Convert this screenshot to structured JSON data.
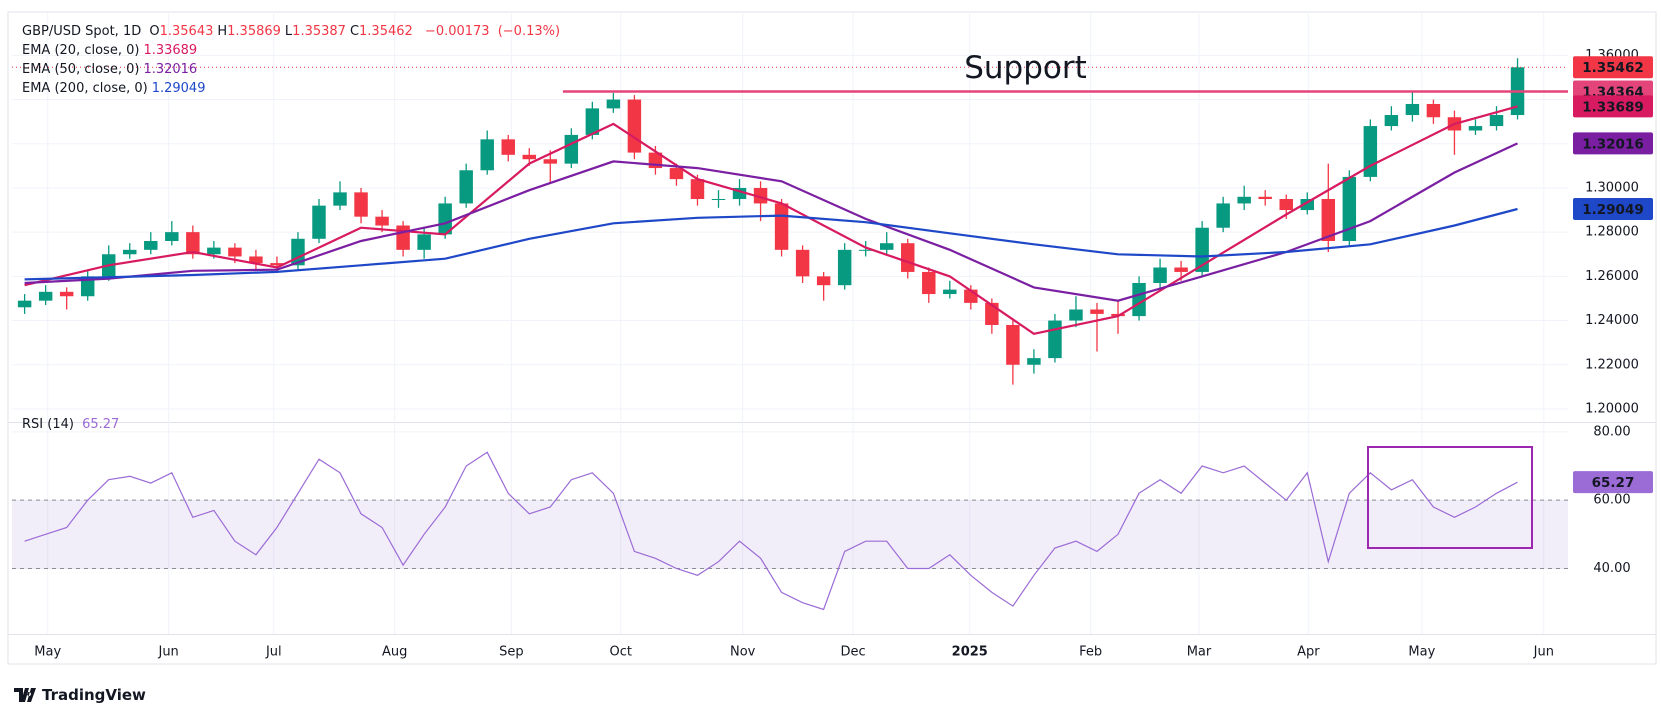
{
  "chart_data": {
    "type": "candlestick",
    "title": "GBP/USD Spot, 1D",
    "quote": [
      {
        "label": "O",
        "value": 1.35643
      },
      {
        "label": "H",
        "value": 1.35869
      },
      {
        "label": "L",
        "value": 1.35387
      },
      {
        "label": "C",
        "value": 1.35462
      }
    ],
    "change": {
      "value": -0.00173,
      "label": "−0.00173"
    },
    "change_pct": {
      "value": -0.13,
      "label": "(−0.13%)"
    },
    "up_color": "#089981",
    "down_color": "#f23645",
    "open": [
      1.246,
      1.249,
      1.253,
      1.251,
      1.26,
      1.27,
      1.272,
      1.276,
      1.28,
      1.27,
      1.273,
      1.269,
      1.266,
      1.265,
      1.277,
      1.292,
      1.298,
      1.287,
      1.283,
      1.272,
      1.279,
      1.293,
      1.308,
      1.322,
      1.315,
      1.313,
      1.311,
      1.324,
      1.336,
      1.34,
      1.316,
      1.309,
      1.304,
      1.295,
      1.295,
      1.3,
      1.293,
      1.272,
      1.26,
      1.256,
      1.272,
      1.272,
      1.275,
      1.262,
      1.252,
      1.254,
      1.248,
      1.238,
      1.22,
      1.223,
      1.24,
      1.245,
      1.243,
      1.242,
      1.257,
      1.264,
      1.262,
      1.282,
      1.293,
      1.296,
      1.295,
      1.29,
      1.295,
      1.276,
      1.305,
      1.328,
      1.333,
      1.338,
      1.332,
      1.326,
      1.328,
      1.333
    ],
    "high": [
      1.252,
      1.256,
      1.255,
      1.263,
      1.274,
      1.275,
      1.28,
      1.285,
      1.283,
      1.276,
      1.275,
      1.272,
      1.269,
      1.28,
      1.295,
      1.303,
      1.3,
      1.29,
      1.285,
      1.282,
      1.296,
      1.311,
      1.326,
      1.324,
      1.318,
      1.317,
      1.327,
      1.339,
      1.343,
      1.342,
      1.319,
      1.311,
      1.306,
      1.299,
      1.304,
      1.303,
      1.295,
      1.274,
      1.262,
      1.275,
      1.276,
      1.28,
      1.277,
      1.264,
      1.258,
      1.256,
      1.25,
      1.24,
      1.227,
      1.243,
      1.251,
      1.248,
      1.249,
      1.26,
      1.268,
      1.267,
      1.285,
      1.296,
      1.301,
      1.299,
      1.297,
      1.298,
      1.311,
      1.308,
      1.331,
      1.337,
      1.3436,
      1.34,
      1.335,
      1.331,
      1.337,
      1.3587
    ],
    "low": [
      1.243,
      1.247,
      1.245,
      1.249,
      1.258,
      1.268,
      1.27,
      1.274,
      1.268,
      1.268,
      1.266,
      1.263,
      1.262,
      1.263,
      1.275,
      1.29,
      1.284,
      1.28,
      1.269,
      1.268,
      1.277,
      1.291,
      1.306,
      1.312,
      1.31,
      1.302,
      1.309,
      1.322,
      1.334,
      1.313,
      1.306,
      1.301,
      1.292,
      1.291,
      1.292,
      1.285,
      1.269,
      1.257,
      1.249,
      1.254,
      1.269,
      1.27,
      1.259,
      1.248,
      1.25,
      1.245,
      1.234,
      1.211,
      1.216,
      1.221,
      1.237,
      1.226,
      1.234,
      1.24,
      1.255,
      1.258,
      1.26,
      1.28,
      1.29,
      1.292,
      1.286,
      1.288,
      1.271,
      1.274,
      1.303,
      1.326,
      1.33,
      1.329,
      1.315,
      1.324,
      1.326,
      1.331
    ],
    "close": [
      1.249,
      1.253,
      1.251,
      1.26,
      1.27,
      1.272,
      1.276,
      1.28,
      1.27,
      1.273,
      1.269,
      1.266,
      1.265,
      1.277,
      1.292,
      1.298,
      1.287,
      1.283,
      1.272,
      1.279,
      1.293,
      1.308,
      1.322,
      1.315,
      1.313,
      1.311,
      1.324,
      1.336,
      1.34,
      1.316,
      1.309,
      1.304,
      1.295,
      1.295,
      1.3,
      1.293,
      1.272,
      1.26,
      1.256,
      1.272,
      1.272,
      1.275,
      1.262,
      1.252,
      1.254,
      1.248,
      1.238,
      1.22,
      1.223,
      1.24,
      1.245,
      1.243,
      1.242,
      1.257,
      1.264,
      1.262,
      1.282,
      1.293,
      1.296,
      1.295,
      1.29,
      1.295,
      1.276,
      1.305,
      1.328,
      1.333,
      1.338,
      1.332,
      1.326,
      1.328,
      1.333,
      1.3546
    ],
    "series": [
      {
        "name": "EMA (20, close, 0)",
        "color": "#d81b60",
        "x": [
          0,
          4,
          8,
          12,
          16,
          20,
          24,
          28,
          32,
          36,
          40,
          44,
          48,
          52,
          56,
          60,
          64,
          68,
          71
        ],
        "values": [
          1.256,
          1.265,
          1.271,
          1.264,
          1.282,
          1.279,
          1.311,
          1.329,
          1.304,
          1.293,
          1.273,
          1.26,
          1.234,
          1.242,
          1.265,
          1.288,
          1.31,
          1.329,
          1.33689
        ]
      },
      {
        "name": "EMA (50, close, 0)",
        "color": "#7b1fa2",
        "x": [
          0,
          4,
          8,
          12,
          16,
          20,
          24,
          28,
          32,
          36,
          40,
          44,
          48,
          52,
          56,
          60,
          64,
          68,
          71
        ],
        "values": [
          1.257,
          1.259,
          1.2625,
          1.263,
          1.276,
          1.284,
          1.299,
          1.312,
          1.309,
          1.303,
          1.286,
          1.272,
          1.255,
          1.249,
          1.26,
          1.271,
          1.285,
          1.307,
          1.32016
        ]
      },
      {
        "name": "EMA (200, close, 0)",
        "color": "#1e48c8",
        "x": [
          0,
          4,
          8,
          12,
          16,
          20,
          24,
          28,
          32,
          36,
          40,
          44,
          48,
          52,
          56,
          60,
          64,
          68,
          71
        ],
        "values": [
          1.2586,
          1.2596,
          1.2606,
          1.262,
          1.265,
          1.268,
          1.277,
          1.284,
          1.2865,
          1.2875,
          1.2845,
          1.2795,
          1.2745,
          1.27,
          1.269,
          1.271,
          1.2745,
          1.283,
          1.29049
        ]
      }
    ],
    "support": {
      "label": "Support",
      "value": 1.34364,
      "start": 25.6,
      "color": "#e3447a"
    },
    "ylim": [
      1.195,
      1.376
    ],
    "yticks": [
      {
        "value": 1.2,
        "label": "1.20000"
      },
      {
        "value": 1.22,
        "label": "1.22000"
      },
      {
        "value": 1.24,
        "label": "1.24000"
      },
      {
        "value": 1.26,
        "label": "1.26000"
      },
      {
        "value": 1.28,
        "label": "1.28000"
      },
      {
        "value": 1.3,
        "label": "1.30000"
      },
      {
        "value": 1.32,
        "label": "1.32000"
      },
      {
        "value": 1.34,
        "label": "1.34000"
      },
      {
        "value": 1.36,
        "label": "1.36000"
      }
    ],
    "xlim": [
      -0.6,
      73.4
    ],
    "xticks": [
      {
        "value": 1.1,
        "label": "May"
      },
      {
        "value": 6.85,
        "label": "Jun"
      },
      {
        "value": 11.85,
        "label": "Jul"
      },
      {
        "value": 17.6,
        "label": "Aug"
      },
      {
        "value": 23.15,
        "label": "Sep"
      },
      {
        "value": 28.35,
        "label": "Oct"
      },
      {
        "value": 34.15,
        "label": "Nov"
      },
      {
        "value": 39.4,
        "label": "Dec"
      },
      {
        "value": 44.95,
        "label": "2025"
      },
      {
        "value": 50.7,
        "label": "Feb"
      },
      {
        "value": 55.85,
        "label": "Mar"
      },
      {
        "value": 61.05,
        "label": "Apr"
      },
      {
        "value": 66.45,
        "label": "May"
      },
      {
        "value": 72.25,
        "label": "Jun"
      }
    ],
    "grid": true,
    "rsi": {
      "name": "RSI (14)",
      "color": "#9b6bd6",
      "values": [
        48,
        50,
        52,
        60,
        66,
        67,
        65,
        68,
        55,
        57,
        48,
        44,
        52,
        62,
        72,
        68,
        56,
        52,
        41,
        50,
        58,
        70,
        74,
        62,
        56,
        58,
        66,
        68,
        62,
        45,
        43,
        40,
        38,
        42,
        48,
        43,
        33,
        30,
        28,
        45,
        48,
        48,
        40,
        40,
        44,
        38,
        33,
        29,
        38,
        46,
        48,
        45,
        50,
        62,
        66,
        62,
        70,
        68,
        70,
        65,
        60,
        68,
        42,
        62,
        68,
        63,
        66,
        58,
        55,
        58,
        62,
        65.27
      ],
      "ylim": [
        22,
        82
      ],
      "yticks": [
        {
          "value": 80,
          "label": "80.00"
        },
        {
          "value": 60,
          "label": "60.00"
        },
        {
          "value": 40,
          "label": "40.00"
        }
      ],
      "band": [
        40,
        60
      ]
    }
  },
  "footer": {
    "brand": "TradingView"
  }
}
